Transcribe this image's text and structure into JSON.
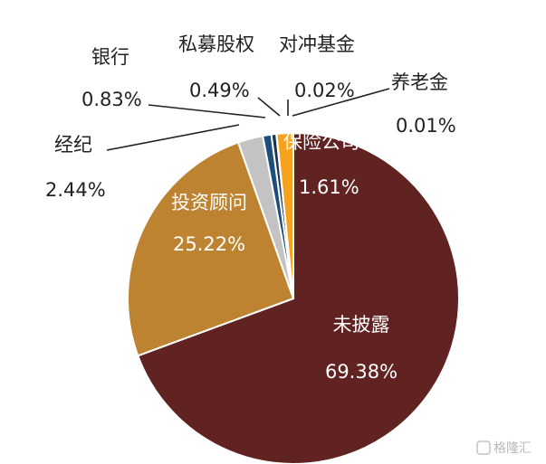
{
  "chart_data": {
    "type": "pie",
    "title": "",
    "slices": [
      {
        "label": "未披露",
        "value_text": "69.38%",
        "value": 69.38,
        "color": "#612222",
        "label_color": "#ffffff"
      },
      {
        "label": "投资顾问",
        "value_text": "25.22%",
        "value": 25.22,
        "color": "#bd8330",
        "label_color": "#ffffff"
      },
      {
        "label": "经纪",
        "value_text": "2.44%",
        "value": 2.44,
        "color": "#c3c3c3",
        "label_color": "#222222"
      },
      {
        "label": "银行",
        "value_text": "0.83%",
        "value": 0.83,
        "color": "#1c4e7e",
        "label_color": "#222222"
      },
      {
        "label": "私募股权",
        "value_text": "0.49%",
        "value": 0.49,
        "color": "#1e3550",
        "label_color": "#222222"
      },
      {
        "label": "对冲基金",
        "value_text": "0.02%",
        "value": 0.02,
        "color": "#e69b22",
        "label_color": "#222222"
      },
      {
        "label": "养老金",
        "value_text": "0.01%",
        "value": 0.01,
        "color": "#f2b25d",
        "label_color": "#222222"
      },
      {
        "label": "保险公司",
        "value_text": "1.61%",
        "value": 1.61,
        "color": "#f7a21c",
        "label_color": "#ffffff"
      }
    ]
  },
  "watermark": "格隆汇"
}
